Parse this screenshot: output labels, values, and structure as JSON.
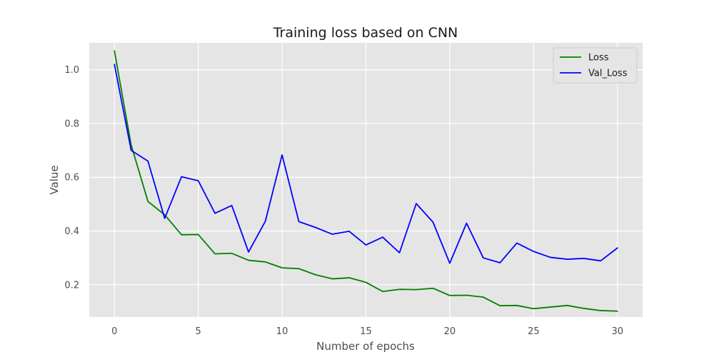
{
  "chart_data": {
    "type": "line",
    "title": "Training loss based on CNN",
    "xlabel": "Number of epochs",
    "ylabel": "Value",
    "xlim": [
      -1.5,
      31.5
    ],
    "ylim": [
      0.08,
      1.1
    ],
    "xticks": [
      0,
      5,
      10,
      15,
      20,
      25,
      30
    ],
    "xtick_labels": [
      "0",
      "5",
      "10",
      "15",
      "20",
      "25",
      "30"
    ],
    "yticks": [
      0.2,
      0.4,
      0.6,
      0.8,
      1.0
    ],
    "ytick_labels": [
      "0.2",
      "0.4",
      "0.6",
      "0.8",
      "1.0"
    ],
    "grid": true,
    "legend_position": "top-right",
    "x": [
      0,
      1,
      2,
      3,
      4,
      5,
      6,
      7,
      8,
      9,
      10,
      11,
      12,
      13,
      14,
      15,
      16,
      17,
      18,
      19,
      20,
      21,
      22,
      23,
      24,
      25,
      26,
      27,
      28,
      29,
      30
    ],
    "series": [
      {
        "name": "Loss",
        "color": "#008000",
        "values": [
          1.07,
          0.72,
          0.51,
          0.46,
          0.386,
          0.387,
          0.315,
          0.317,
          0.291,
          0.285,
          0.263,
          0.26,
          0.237,
          0.222,
          0.226,
          0.209,
          0.175,
          0.183,
          0.182,
          0.187,
          0.16,
          0.161,
          0.154,
          0.122,
          0.123,
          0.111,
          0.117,
          0.123,
          0.112,
          0.104,
          0.102
        ]
      },
      {
        "name": "Val_Loss",
        "color": "#0000ff",
        "values": [
          1.02,
          0.7,
          0.66,
          0.447,
          0.602,
          0.587,
          0.466,
          0.495,
          0.322,
          0.436,
          0.683,
          0.435,
          0.413,
          0.388,
          0.399,
          0.348,
          0.377,
          0.319,
          0.502,
          0.433,
          0.28,
          0.429,
          0.3,
          0.282,
          0.355,
          0.324,
          0.302,
          0.295,
          0.298,
          0.289,
          0.337
        ]
      }
    ]
  }
}
